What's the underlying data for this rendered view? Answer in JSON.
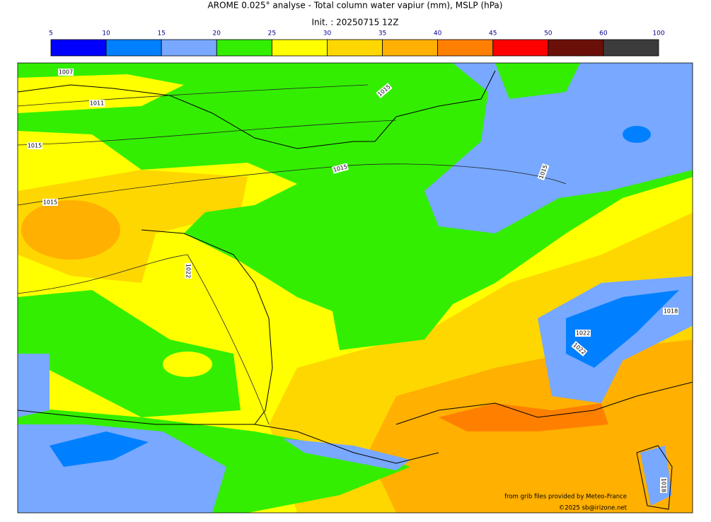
{
  "title": "AROME 0.025° analyse - Total column water vapiur (mm), MSLP (hPa)",
  "subtitle": "Init. : 20250715 12Z",
  "colorbar": {
    "ticks": [
      5,
      10,
      15,
      20,
      25,
      30,
      35,
      40,
      45,
      50,
      60,
      100
    ],
    "colors": [
      "#0000ff",
      "#0080ff",
      "#78a8ff",
      "#33ee00",
      "#ffff00",
      "#ffd700",
      "#ffb000",
      "#ff8000",
      "#ff0000",
      "#6b1008",
      "#3c3c3c"
    ]
  },
  "isobar_labels": [
    "1007",
    "1011",
    "1015",
    "1015",
    "1015",
    "1015",
    "1015",
    "1022",
    "1022",
    "1022",
    "1018",
    "1018"
  ],
  "credits": [
    "from grib files provided by Meteo-France",
    "©2025 sb@irizone.net"
  ]
}
